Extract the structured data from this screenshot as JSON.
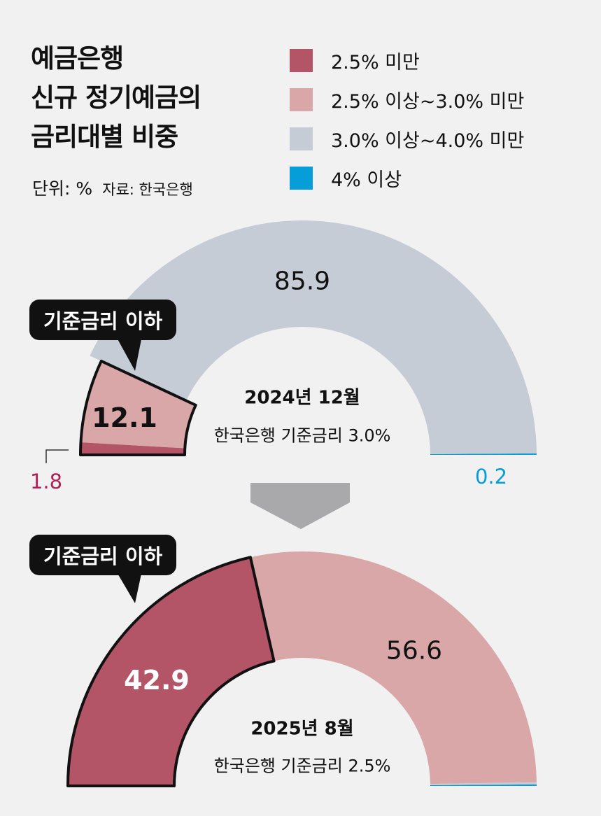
{
  "title_lines": [
    "예금은행",
    "신규 정기예금의",
    "금리대별 비중"
  ],
  "unit": "단위: %",
  "source": "자료: 한국은행",
  "colors": {
    "lt25": "#b45467",
    "r25_30": "#d9a7a8",
    "r30_40": "#c5ccd6",
    "ge4": "#069ed9",
    "arrow": "#a9a9ab"
  },
  "legend": [
    {
      "label": "2.5% 미만",
      "color": "#b45467"
    },
    {
      "label": "2.5% 이상~3.0% 미만",
      "color": "#d9a7a8"
    },
    {
      "label": "3.0% 이상~4.0% 미만",
      "color": "#c5ccd6"
    },
    {
      "label": "4% 이상",
      "color": "#069ed9"
    }
  ],
  "callout": "기준금리 이하",
  "chart_data": [
    {
      "type": "pie",
      "shape": "half-donut",
      "title": "2024년 12월",
      "subtitle": "한국은행 기준금리 3.0%",
      "categories": [
        "2.5% 미만",
        "2.5% 이상~3.0% 미만",
        "3.0% 이상~4.0% 미만",
        "4% 이상"
      ],
      "values": [
        1.8,
        12.1,
        85.9,
        0.2
      ],
      "labels": [
        "1.8",
        "12.1",
        "85.9",
        "0.2"
      ],
      "highlighted": [
        "2.5% 미만",
        "2.5% 이상~3.0% 미만"
      ]
    },
    {
      "type": "pie",
      "shape": "half-donut",
      "title": "2025년 8월",
      "subtitle": "한국은행 기준금리 2.5%",
      "categories": [
        "2.5% 미만",
        "2.5% 이상~3.0% 미만",
        "3.0% 이상~4.0% 미만",
        "4% 이상"
      ],
      "values": [
        42.9,
        56.6,
        0.3,
        0.2
      ],
      "labels": [
        "42.9",
        "56.6",
        "",
        ""
      ],
      "highlighted": [
        "2.5% 미만"
      ]
    }
  ]
}
